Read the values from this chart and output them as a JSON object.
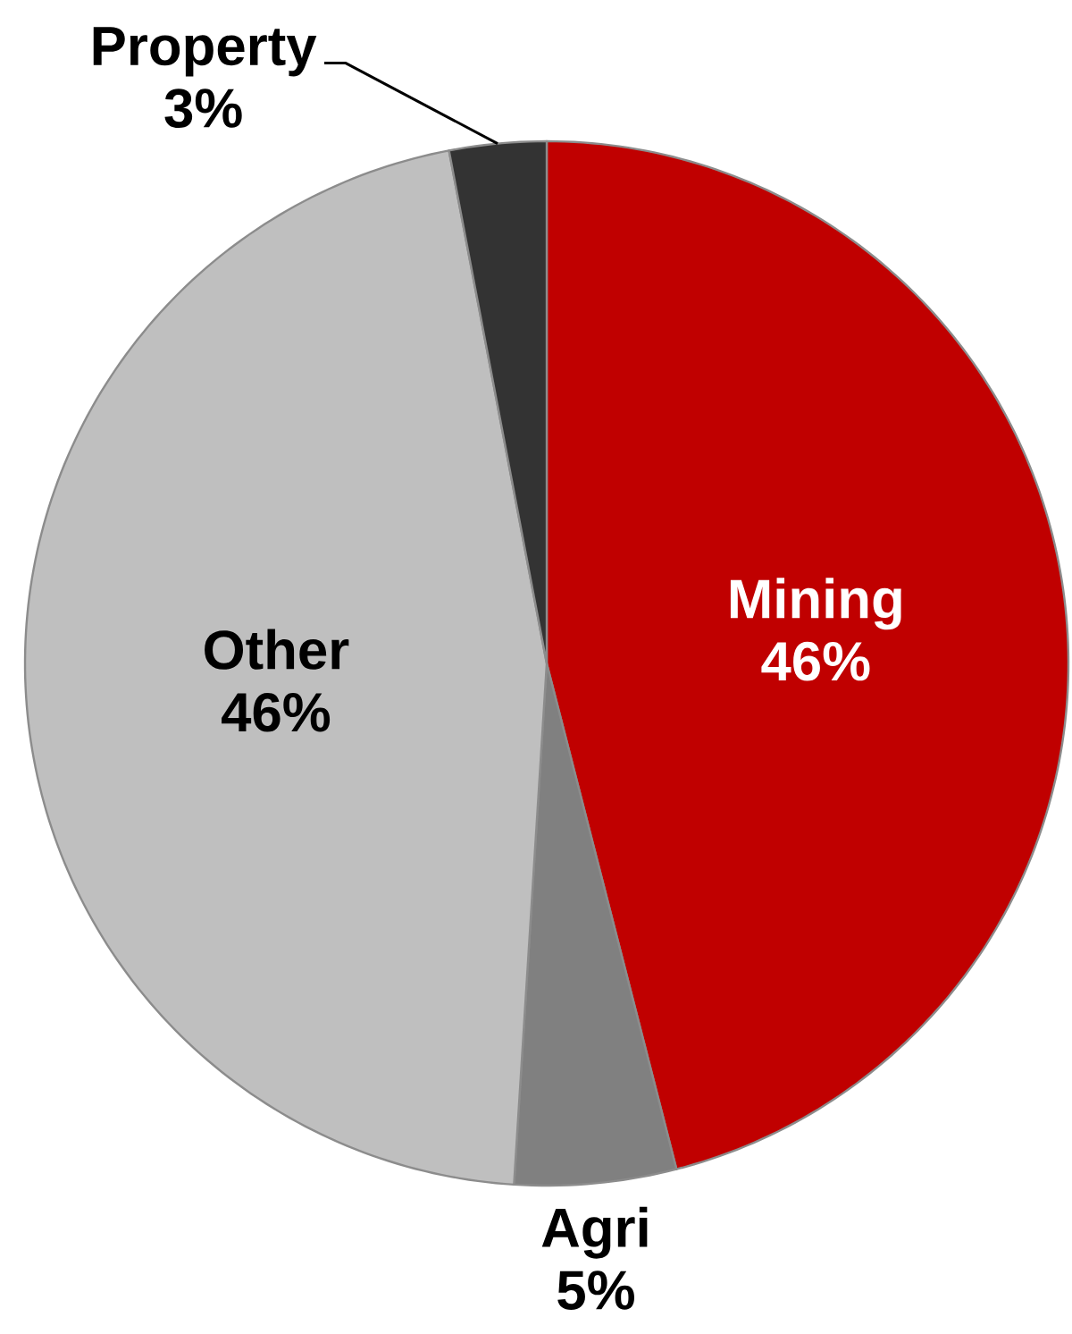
{
  "chart_data": {
    "type": "pie",
    "categories": [
      "Mining",
      "Agri",
      "Other",
      "Property"
    ],
    "values": [
      46,
      5,
      46,
      3
    ],
    "colors": [
      "#c00000",
      "#808080",
      "#bfbfbf",
      "#333333"
    ],
    "value_labels": [
      "46%",
      "5%",
      "46%",
      "3%"
    ]
  }
}
